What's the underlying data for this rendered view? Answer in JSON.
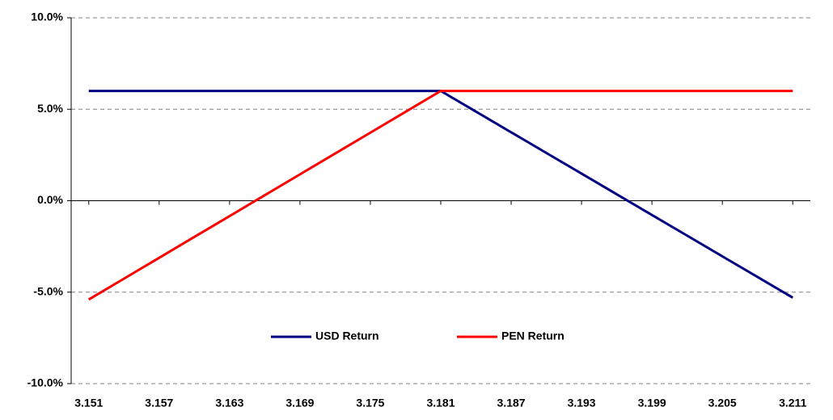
{
  "chart_data": {
    "type": "line",
    "x": [
      3.151,
      3.154,
      3.157,
      3.16,
      3.163,
      3.166,
      3.169,
      3.172,
      3.175,
      3.178,
      3.181,
      3.184,
      3.187,
      3.19,
      3.193,
      3.196,
      3.199,
      3.202,
      3.205,
      3.208,
      3.211
    ],
    "series": [
      {
        "name": "USD Return",
        "color": "#000080",
        "values": [
          6.0,
          6.0,
          6.0,
          6.0,
          6.0,
          6.0,
          6.0,
          6.0,
          6.0,
          6.0,
          6.0,
          4.87,
          3.74,
          2.61,
          1.48,
          0.35,
          -0.78,
          -1.91,
          -3.04,
          -4.17,
          -5.3
        ]
      },
      {
        "name": "PEN Return",
        "color": "#ff0000",
        "values": [
          -5.4,
          -4.26,
          -3.12,
          -1.98,
          -0.84,
          0.3,
          1.44,
          2.58,
          3.72,
          4.86,
          6.0,
          6.0,
          6.0,
          6.0,
          6.0,
          6.0,
          6.0,
          6.0,
          6.0,
          6.0,
          6.0
        ]
      }
    ],
    "xlim": [
      3.1495,
      3.2125
    ],
    "xticks": [
      3.151,
      3.157,
      3.163,
      3.169,
      3.175,
      3.181,
      3.187,
      3.193,
      3.199,
      3.205,
      3.211
    ],
    "ylim": [
      -10,
      10
    ],
    "yticks": [
      {
        "value": -10,
        "label": "-10.0%"
      },
      {
        "value": -5,
        "label": "-5.0%"
      },
      {
        "value": 0,
        "label": "0.0%"
      },
      {
        "value": 5,
        "label": "5.0%"
      },
      {
        "value": 10,
        "label": "10.0%"
      }
    ],
    "grid": true,
    "legend": "bottom"
  }
}
